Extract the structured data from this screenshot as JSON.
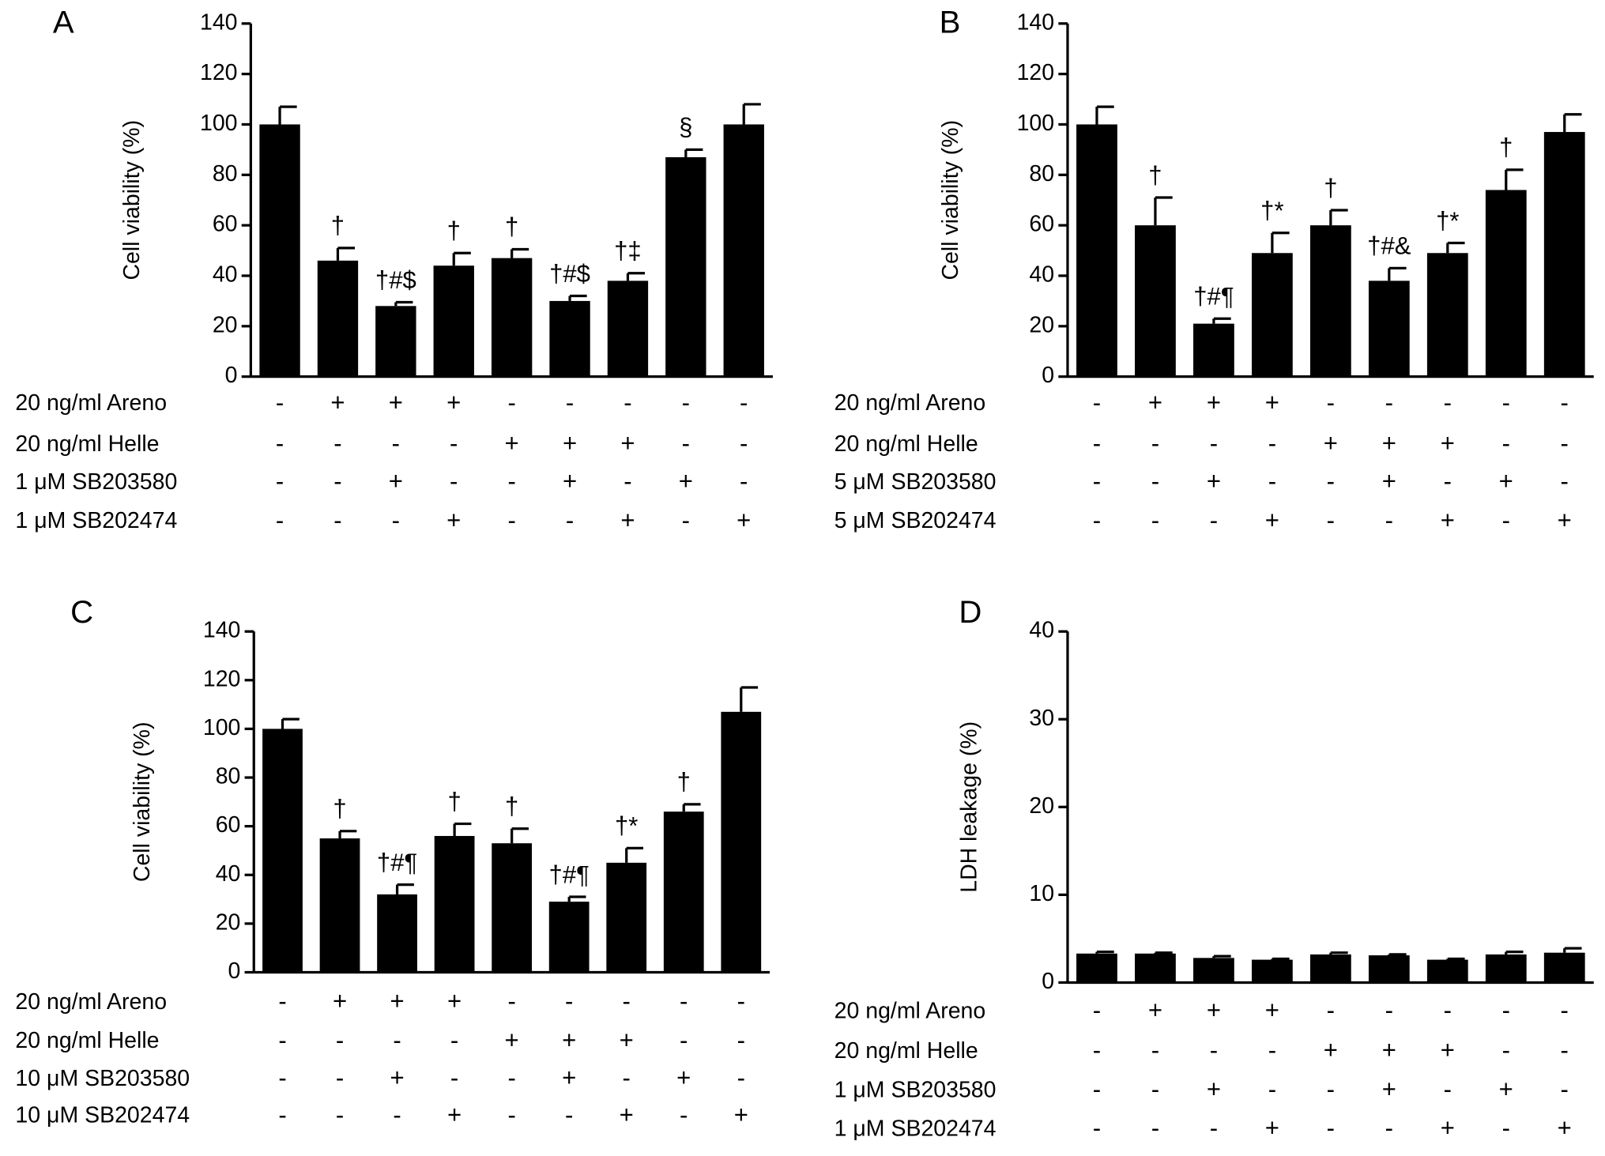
{
  "chart_data": [
    {
      "type": "bar",
      "panel": "A",
      "ylabel": "Cell viability (%)",
      "color": "#000000",
      "ylim": [
        0,
        140
      ],
      "yticks": [
        0,
        20,
        40,
        60,
        80,
        100,
        120,
        140
      ],
      "values": [
        100,
        46,
        28,
        44,
        47,
        30,
        38,
        87,
        100
      ],
      "errors": [
        7,
        5,
        1.5,
        5,
        3.5,
        2,
        3,
        3,
        8
      ],
      "annotations": [
        null,
        "†",
        "†#$",
        "†",
        "†",
        "†#$",
        "†‡",
        "§",
        null
      ],
      "rows": [
        {
          "label": "20 ng/ml Areno",
          "signs": [
            "-",
            "+",
            "+",
            "+",
            "-",
            "-",
            "-",
            "-",
            "-"
          ]
        },
        {
          "label": "20 ng/ml Helle",
          "signs": [
            "-",
            "-",
            "-",
            "-",
            "+",
            "+",
            "+",
            "-",
            "-"
          ]
        },
        {
          "label": "1 μM SB203580",
          "signs": [
            "-",
            "-",
            "+",
            "-",
            "-",
            "+",
            "-",
            "+",
            "-"
          ]
        },
        {
          "label": "1 μM SB202474",
          "signs": [
            "-",
            "-",
            "-",
            "+",
            "-",
            "-",
            "+",
            "-",
            "+"
          ]
        }
      ]
    },
    {
      "type": "bar",
      "panel": "B",
      "ylabel": "Cell viability (%)",
      "color": "#000000",
      "ylim": [
        0,
        140
      ],
      "yticks": [
        0,
        20,
        40,
        60,
        80,
        100,
        120,
        140
      ],
      "values": [
        100,
        60,
        21,
        49,
        60,
        38,
        49,
        74,
        97
      ],
      "errors": [
        7,
        11,
        2,
        8,
        6,
        5,
        4,
        8,
        7
      ],
      "annotations": [
        null,
        "†",
        "†#¶",
        "†*",
        "†",
        "†#&",
        "†*",
        "†",
        null
      ],
      "rows": [
        {
          "label": "20 ng/ml Areno",
          "signs": [
            "-",
            "+",
            "+",
            "+",
            "-",
            "-",
            "-",
            "-",
            "-"
          ]
        },
        {
          "label": "20 ng/ml Helle",
          "signs": [
            "-",
            "-",
            "-",
            "-",
            "+",
            "+",
            "+",
            "-",
            "-"
          ]
        },
        {
          "label": "5 μM SB203580",
          "signs": [
            "-",
            "-",
            "+",
            "-",
            "-",
            "+",
            "-",
            "+",
            "-"
          ]
        },
        {
          "label": "5 μM SB202474",
          "signs": [
            "-",
            "-",
            "-",
            "+",
            "-",
            "-",
            "+",
            "-",
            "+"
          ]
        }
      ]
    },
    {
      "type": "bar",
      "panel": "C",
      "ylabel": "Cell viability (%)",
      "color": "#000000",
      "ylim": [
        0,
        140
      ],
      "yticks": [
        0,
        20,
        40,
        60,
        80,
        100,
        120,
        140
      ],
      "values": [
        100,
        55,
        32,
        56,
        53,
        29,
        45,
        66,
        107
      ],
      "errors": [
        4,
        3,
        4,
        5,
        6,
        2,
        6,
        3,
        10
      ],
      "annotations": [
        null,
        "†",
        "†#¶",
        "†",
        "†",
        "†#¶",
        "†*",
        "†",
        null
      ],
      "rows": [
        {
          "label": "20 ng/ml Areno",
          "signs": [
            "-",
            "+",
            "+",
            "+",
            "-",
            "-",
            "-",
            "-",
            "-"
          ]
        },
        {
          "label": "20 ng/ml Helle",
          "signs": [
            "-",
            "-",
            "-",
            "-",
            "+",
            "+",
            "+",
            "-",
            "-"
          ]
        },
        {
          "label": "10 μM SB203580",
          "signs": [
            "-",
            "-",
            "+",
            "-",
            "-",
            "+",
            "-",
            "+",
            "-"
          ]
        },
        {
          "label": "10 μM SB202474",
          "signs": [
            "-",
            "-",
            "-",
            "+",
            "-",
            "-",
            "+",
            "-",
            "+"
          ]
        }
      ]
    },
    {
      "type": "bar",
      "panel": "D",
      "ylabel": "LDH leakage (%)",
      "color": "#000000",
      "ylim": [
        0,
        40
      ],
      "yticks": [
        0,
        10,
        20,
        30,
        40
      ],
      "values": [
        3.3,
        3.3,
        2.8,
        2.6,
        3.2,
        3.1,
        2.6,
        3.2,
        3.4
      ],
      "errors": [
        0.2,
        0.1,
        0.2,
        0.1,
        0.2,
        0.1,
        0.1,
        0.3,
        0.5
      ],
      "rows": [
        {
          "label": "20 ng/ml Areno",
          "signs": [
            "-",
            "+",
            "+",
            "+",
            "-",
            "-",
            "-",
            "-",
            "-"
          ]
        },
        {
          "label": "20 ng/ml Helle",
          "signs": [
            "-",
            "-",
            "-",
            "-",
            "+",
            "+",
            "+",
            "-",
            "-"
          ]
        },
        {
          "label": "1 μM SB203580",
          "signs": [
            "-",
            "-",
            "+",
            "-",
            "-",
            "+",
            "-",
            "+",
            "-"
          ]
        },
        {
          "label": "1 μM SB202474",
          "signs": [
            "-",
            "-",
            "-",
            "+",
            "-",
            "-",
            "+",
            "-",
            "+"
          ]
        }
      ]
    }
  ]
}
